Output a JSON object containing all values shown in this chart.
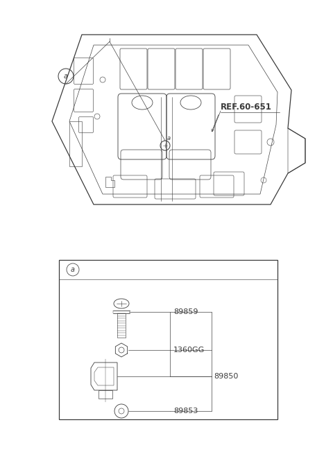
{
  "bg_color": "#ffffff",
  "line_color": "#3a3a3a",
  "fig_w": 4.8,
  "fig_h": 6.55,
  "dpi": 100,
  "ref_label": "REF.60-651",
  "circle_label_a": "a",
  "parts": [
    "89859",
    "1360GG",
    "89850",
    "89853"
  ]
}
